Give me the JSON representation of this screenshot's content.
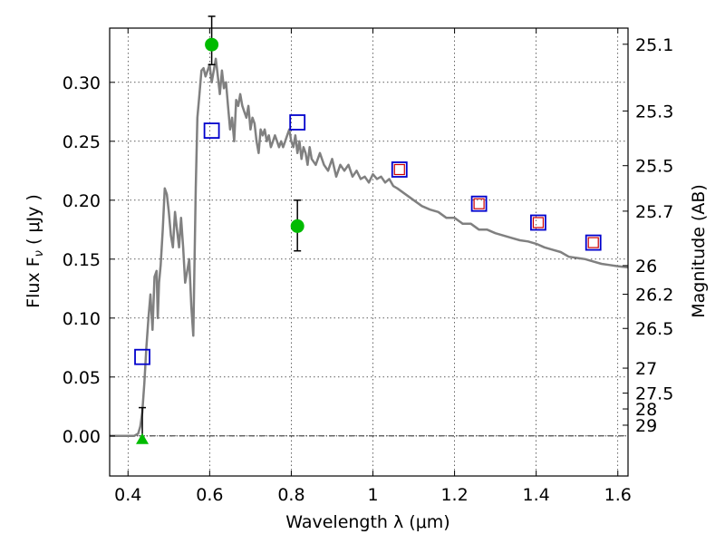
{
  "chart_data": {
    "type": "scatter",
    "xlabel": "Wavelength  λ (μm)",
    "ylabel": "Flux  F",
    "ylabel_sub": "ν",
    "ylabel_unit": "  ( μJy )",
    "y2label": "Magnitude (AB)",
    "xlim": [
      0.355,
      1.625
    ],
    "ylim": [
      -0.034,
      0.346
    ],
    "grid": true,
    "grid_style": "dotted",
    "x_ticks": [
      0.4,
      0.6,
      0.8,
      1.0,
      1.2,
      1.4,
      1.6
    ],
    "x_tick_labels": [
      "0.4",
      "0.6",
      "0.8",
      "1",
      "1.2",
      "1.4",
      "1.6"
    ],
    "y_ticks": [
      0.0,
      0.05,
      0.1,
      0.15,
      0.2,
      0.25,
      0.3
    ],
    "y_tick_labels": [
      "0.00",
      "0.05",
      "0.10",
      "0.15",
      "0.20",
      "0.25",
      "0.30"
    ],
    "mag_ticks": [
      {
        "flux": 0.3323,
        "label": "25.1"
      },
      {
        "flux": 0.2757,
        "label": "25.3"
      },
      {
        "flux": 0.2293,
        "label": "25.5"
      },
      {
        "flux": 0.1907,
        "label": "25.7"
      },
      {
        "flux": 0.1445,
        "label": "26"
      },
      {
        "flux": 0.1202,
        "label": "26.2"
      },
      {
        "flux": 0.0912,
        "label": "26.5"
      },
      {
        "flux": 0.0575,
        "label": "27"
      },
      {
        "flux": 0.0363,
        "label": "27.5"
      },
      {
        "flux": 0.0229,
        "label": "28"
      },
      {
        "flux": 0.0091,
        "label": "29"
      }
    ],
    "colors": {
      "model": "#808080",
      "model_boxes": "#0000cc",
      "detections": "#00bb00",
      "predicted": "#cc0000",
      "errorbars": "#000000"
    },
    "model_spectrum": {
      "x": [
        0.355,
        0.4,
        0.415,
        0.425,
        0.43,
        0.435,
        0.44,
        0.445,
        0.45,
        0.455,
        0.46,
        0.465,
        0.47,
        0.473,
        0.476,
        0.48,
        0.485,
        0.49,
        0.495,
        0.5,
        0.505,
        0.51,
        0.515,
        0.52,
        0.525,
        0.53,
        0.535,
        0.54,
        0.545,
        0.55,
        0.555,
        0.56,
        0.563,
        0.566,
        0.57,
        0.575,
        0.58,
        0.585,
        0.59,
        0.595,
        0.6,
        0.605,
        0.61,
        0.615,
        0.62,
        0.625,
        0.63,
        0.635,
        0.64,
        0.645,
        0.65,
        0.655,
        0.66,
        0.665,
        0.67,
        0.675,
        0.68,
        0.685,
        0.69,
        0.695,
        0.7,
        0.705,
        0.71,
        0.715,
        0.72,
        0.725,
        0.73,
        0.735,
        0.74,
        0.745,
        0.75,
        0.755,
        0.76,
        0.765,
        0.77,
        0.775,
        0.78,
        0.785,
        0.79,
        0.795,
        0.8,
        0.805,
        0.81,
        0.815,
        0.82,
        0.825,
        0.83,
        0.835,
        0.84,
        0.845,
        0.85,
        0.86,
        0.87,
        0.88,
        0.89,
        0.9,
        0.91,
        0.92,
        0.93,
        0.94,
        0.95,
        0.96,
        0.97,
        0.98,
        0.99,
        1.0,
        1.01,
        1.02,
        1.03,
        1.04,
        1.05,
        1.06,
        1.08,
        1.1,
        1.12,
        1.14,
        1.16,
        1.18,
        1.2,
        1.22,
        1.24,
        1.26,
        1.28,
        1.3,
        1.32,
        1.34,
        1.36,
        1.38,
        1.4,
        1.42,
        1.44,
        1.46,
        1.48,
        1.5,
        1.52,
        1.54,
        1.56,
        1.58,
        1.6,
        1.625
      ],
      "y": [
        0.0,
        0.0,
        0.0,
        0.002,
        0.008,
        0.02,
        0.045,
        0.075,
        0.1,
        0.12,
        0.09,
        0.135,
        0.14,
        0.1,
        0.13,
        0.145,
        0.175,
        0.21,
        0.205,
        0.19,
        0.17,
        0.16,
        0.19,
        0.175,
        0.16,
        0.185,
        0.16,
        0.13,
        0.14,
        0.15,
        0.11,
        0.085,
        0.15,
        0.21,
        0.27,
        0.29,
        0.31,
        0.312,
        0.305,
        0.31,
        0.315,
        0.3,
        0.31,
        0.32,
        0.305,
        0.29,
        0.31,
        0.295,
        0.3,
        0.28,
        0.26,
        0.27,
        0.25,
        0.285,
        0.28,
        0.29,
        0.28,
        0.275,
        0.27,
        0.28,
        0.26,
        0.27,
        0.265,
        0.25,
        0.24,
        0.26,
        0.255,
        0.26,
        0.25,
        0.255,
        0.245,
        0.25,
        0.255,
        0.25,
        0.245,
        0.25,
        0.245,
        0.25,
        0.255,
        0.26,
        0.25,
        0.245,
        0.255,
        0.24,
        0.25,
        0.235,
        0.245,
        0.24,
        0.23,
        0.245,
        0.235,
        0.23,
        0.24,
        0.23,
        0.225,
        0.235,
        0.22,
        0.23,
        0.225,
        0.23,
        0.22,
        0.225,
        0.218,
        0.22,
        0.215,
        0.222,
        0.218,
        0.22,
        0.215,
        0.218,
        0.212,
        0.21,
        0.205,
        0.2,
        0.195,
        0.192,
        0.19,
        0.185,
        0.185,
        0.18,
        0.18,
        0.175,
        0.175,
        0.172,
        0.17,
        0.168,
        0.166,
        0.165,
        0.163,
        0.16,
        0.158,
        0.156,
        0.152,
        0.151,
        0.15,
        0.148,
        0.146,
        0.145,
        0.144,
        0.143
      ]
    },
    "model_photometry": {
      "name": "model",
      "x": [
        0.435,
        0.605,
        0.815,
        1.065,
        1.26,
        1.405,
        1.54
      ],
      "y": [
        0.067,
        0.259,
        0.266,
        0.226,
        0.197,
        0.181,
        0.164
      ]
    },
    "predicted_photometry": {
      "x": [
        1.065,
        1.26,
        1.405,
        1.54
      ],
      "y": [
        0.226,
        0.197,
        0.181,
        0.164
      ]
    },
    "detections": {
      "x": [
        0.605,
        0.815
      ],
      "y": [
        0.332,
        0.178
      ],
      "yerr_low": [
        0.017,
        0.021
      ],
      "yerr_high": [
        0.024,
        0.022
      ]
    },
    "upper_limits": {
      "x": [
        0.435
      ],
      "y": [
        -0.003
      ],
      "yerr_high": [
        0.027
      ]
    }
  }
}
